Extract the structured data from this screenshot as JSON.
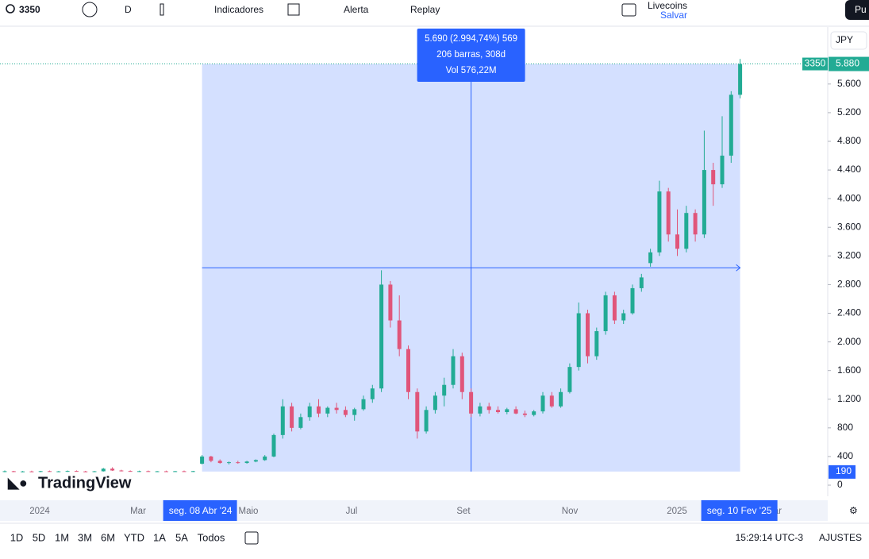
{
  "toolbar": {
    "symbol": "3350",
    "interval": "D",
    "indicators": "Indicadores",
    "alert": "Alerta",
    "replay": "Replay",
    "layout_name": "Livecoins",
    "save": "Salvar",
    "publish": "Pu"
  },
  "chart_data": {
    "type": "candlestick",
    "currency": "JPY",
    "logo": "TradingView",
    "ylim": [
      -155,
      6385
    ],
    "yticks": [
      0,
      400,
      800,
      {
        "value": 1200,
        "label": "1.200"
      },
      {
        "value": 1600,
        "label": "1.600"
      },
      {
        "value": 2000,
        "label": "2.000"
      },
      {
        "value": 2400,
        "label": "2.400"
      },
      {
        "value": 2800,
        "label": "2.800"
      },
      {
        "value": 3200,
        "label": "3.200"
      },
      {
        "value": 3600,
        "label": "3.600"
      },
      {
        "value": 4000,
        "label": "4.000"
      },
      {
        "value": 4400,
        "label": "4.400"
      },
      {
        "value": 4800,
        "label": "4.800"
      },
      {
        "value": 5200,
        "label": "5.200"
      },
      {
        "value": 5600,
        "label": "5.600"
      }
    ],
    "last_price": {
      "value": 5880,
      "label": "5.880"
    },
    "symbol_tag": "3350",
    "measure_low": 190,
    "x_labels": [
      "2024",
      "Mar",
      "Maio",
      "Jul",
      "Set",
      "Nov",
      "2025",
      "Mar"
    ],
    "range_start": "seg. 08 Abr '24",
    "range_end": "seg. 10 Fev '25",
    "measure_info": [
      "5.690 (2.994,74%) 569",
      "206 barras, 308d",
      "Vol 576,22M"
    ],
    "up_color": "#22ab94",
    "down_color": "#e0557a",
    "series": [
      {
        "name": "3350",
        "ohlc": [
          [
            190,
            205,
            180,
            195
          ],
          [
            195,
            200,
            182,
            188
          ],
          [
            188,
            198,
            180,
            192
          ],
          [
            192,
            202,
            185,
            190
          ],
          [
            190,
            200,
            182,
            196
          ],
          [
            196,
            204,
            188,
            190
          ],
          [
            190,
            198,
            182,
            193
          ],
          [
            193,
            205,
            186,
            198
          ],
          [
            198,
            206,
            190,
            192
          ],
          [
            192,
            200,
            184,
            189
          ],
          [
            189,
            198,
            182,
            194
          ],
          [
            194,
            240,
            190,
            230
          ],
          [
            230,
            250,
            200,
            205
          ],
          [
            205,
            215,
            192,
            198
          ],
          [
            198,
            206,
            188,
            192
          ],
          [
            192,
            202,
            184,
            196
          ],
          [
            196,
            204,
            188,
            190
          ],
          [
            190,
            198,
            182,
            194
          ],
          [
            194,
            203,
            186,
            191
          ],
          [
            191,
            199,
            184,
            195
          ],
          [
            195,
            204,
            188,
            190
          ],
          [
            190,
            200,
            184,
            196
          ],
          [
            300,
            420,
            290,
            400
          ],
          [
            400,
            410,
            320,
            340
          ],
          [
            340,
            360,
            300,
            310
          ],
          [
            310,
            330,
            290,
            320
          ],
          [
            320,
            340,
            300,
            310
          ],
          [
            310,
            340,
            300,
            330
          ],
          [
            330,
            360,
            320,
            350
          ],
          [
            350,
            420,
            340,
            400
          ],
          [
            400,
            720,
            390,
            700
          ],
          [
            700,
            1200,
            650,
            1100
          ],
          [
            1100,
            1150,
            750,
            800
          ],
          [
            800,
            1000,
            780,
            950
          ],
          [
            950,
            1150,
            900,
            1100
          ],
          [
            1100,
            1200,
            950,
            1000
          ],
          [
            1000,
            1100,
            950,
            1080
          ],
          [
            1080,
            1150,
            1000,
            1050
          ],
          [
            1050,
            1100,
            950,
            980
          ],
          [
            980,
            1080,
            900,
            1060
          ],
          [
            1060,
            1250,
            1040,
            1200
          ],
          [
            1200,
            1400,
            1150,
            1350
          ],
          [
            1350,
            3000,
            1300,
            2800
          ],
          [
            2800,
            2850,
            2200,
            2300
          ],
          [
            2300,
            2650,
            1800,
            1900
          ],
          [
            1900,
            1950,
            1200,
            1300
          ],
          [
            1300,
            1350,
            650,
            750
          ],
          [
            750,
            1100,
            720,
            1050
          ],
          [
            1050,
            1300,
            1000,
            1250
          ],
          [
            1250,
            1500,
            1100,
            1400
          ],
          [
            1400,
            1900,
            1350,
            1800
          ],
          [
            1800,
            1850,
            1200,
            1300
          ],
          [
            1300,
            1350,
            950,
            1000
          ],
          [
            1000,
            1150,
            960,
            1100
          ],
          [
            1100,
            1150,
            1000,
            1050
          ],
          [
            1050,
            1100,
            1000,
            1020
          ],
          [
            1020,
            1080,
            990,
            1060
          ],
          [
            1060,
            1100,
            990,
            1000
          ],
          [
            1000,
            1040,
            950,
            980
          ],
          [
            980,
            1050,
            960,
            1030
          ],
          [
            1030,
            1300,
            1000,
            1250
          ],
          [
            1250,
            1300,
            1080,
            1100
          ],
          [
            1100,
            1350,
            1080,
            1300
          ],
          [
            1300,
            1700,
            1280,
            1650
          ],
          [
            1650,
            2550,
            1600,
            2400
          ],
          [
            2400,
            2450,
            1700,
            1800
          ],
          [
            1800,
            2200,
            1750,
            2150
          ],
          [
            2150,
            2700,
            2100,
            2650
          ],
          [
            2650,
            2700,
            2250,
            2300
          ],
          [
            2300,
            2450,
            2250,
            2400
          ],
          [
            2400,
            2800,
            2380,
            2750
          ],
          [
            2750,
            2950,
            2700,
            2900
          ],
          [
            3100,
            3300,
            3050,
            3250
          ],
          [
            3250,
            4250,
            3200,
            4100
          ],
          [
            4100,
            4150,
            3400,
            3500
          ],
          [
            3500,
            3850,
            3200,
            3300
          ],
          [
            3300,
            3900,
            3250,
            3800
          ],
          [
            3800,
            3850,
            3400,
            3500
          ],
          [
            3500,
            4950,
            3450,
            4400
          ],
          [
            4400,
            4500,
            3900,
            4200
          ],
          [
            4200,
            5150,
            4150,
            4600
          ],
          [
            4600,
            5500,
            4500,
            5450
          ],
          [
            5450,
            5950,
            5400,
            5880
          ]
        ]
      }
    ]
  },
  "bottom_bar": {
    "ranges": [
      "1D",
      "5D",
      "1M",
      "3M",
      "6M",
      "YTD",
      "1A",
      "5A",
      "Todos"
    ],
    "clock": "15:29:14 UTC-3",
    "settings": "AJUSTES"
  }
}
